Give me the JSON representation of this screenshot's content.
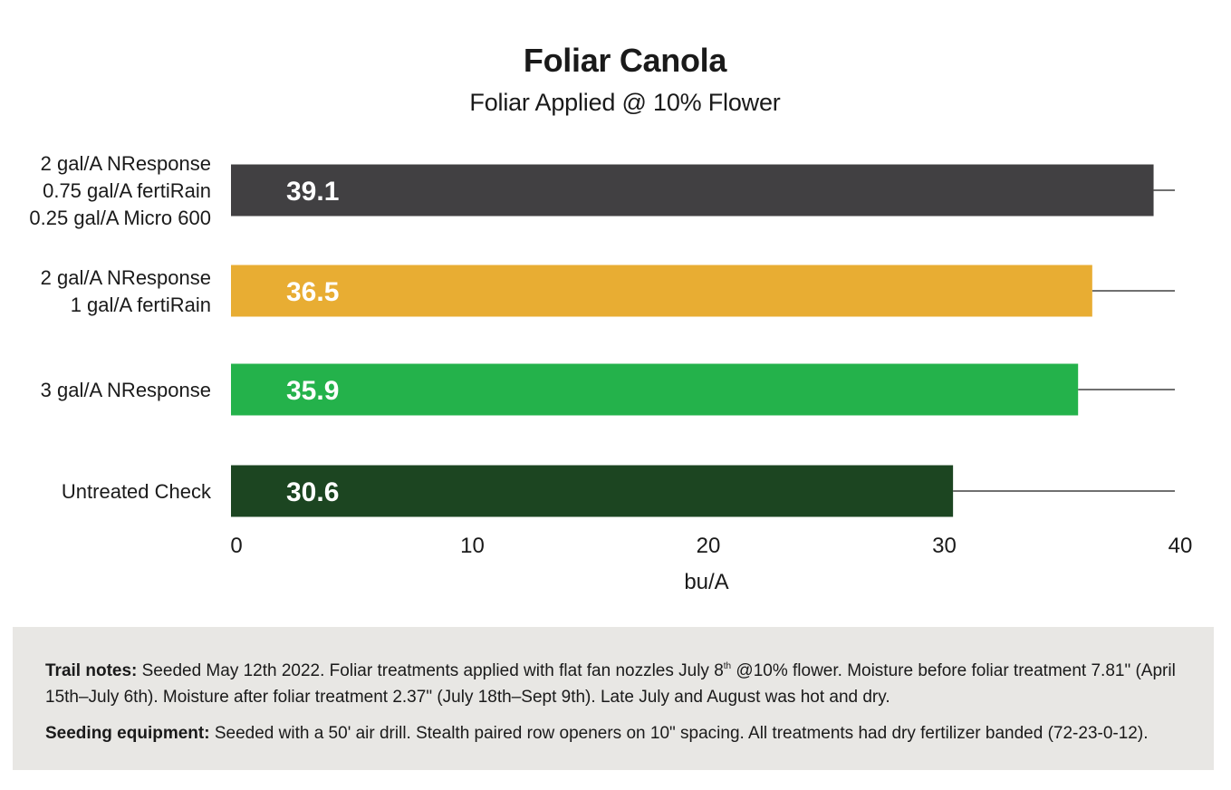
{
  "chart_data": {
    "type": "bar",
    "orientation": "horizontal",
    "title": "Foliar Canola",
    "subtitle": "Foliar Applied @ 10% Flower",
    "xlabel": "bu/A",
    "xlim": [
      0,
      40
    ],
    "xticks": [
      0,
      10,
      20,
      30,
      40
    ],
    "categories": [
      [
        "2 gal/A NResponse",
        "0.75 gal/A fertiRain",
        "0.25 gal/A Micro 600"
      ],
      [
        "2 gal/A NResponse",
        "1 gal/A fertiRain"
      ],
      [
        "3 gal/A NResponse"
      ],
      [
        "Untreated Check"
      ]
    ],
    "values": [
      39.1,
      36.5,
      35.9,
      30.6
    ],
    "value_labels": [
      "39.1",
      "36.5",
      "35.9",
      "30.6"
    ],
    "colors": [
      "#414042",
      "#e8ad33",
      "#24b24b",
      "#1c4521"
    ],
    "grid": false,
    "legend": "none"
  },
  "notes": {
    "trail_label": "Trail notes:",
    "trail_text_1": " Seeded May 12th 2022. Foliar treatments applied with flat fan nozzles July 8",
    "trail_sup": "th",
    "trail_text_2": " @10% flower. Moisture before foliar treatment 7.81\" (April 15th–July 6th). Moisture after foliar treatment 2.37\" (July 18th–Sept 9th). Late July and August was hot and dry.",
    "seeding_label": "Seeding equipment:",
    "seeding_text": " Seeded with a 50' air drill. Stealth paired row openers on 10\" spacing. All treatments had dry fertilizer banded (72-23-0-12)."
  }
}
